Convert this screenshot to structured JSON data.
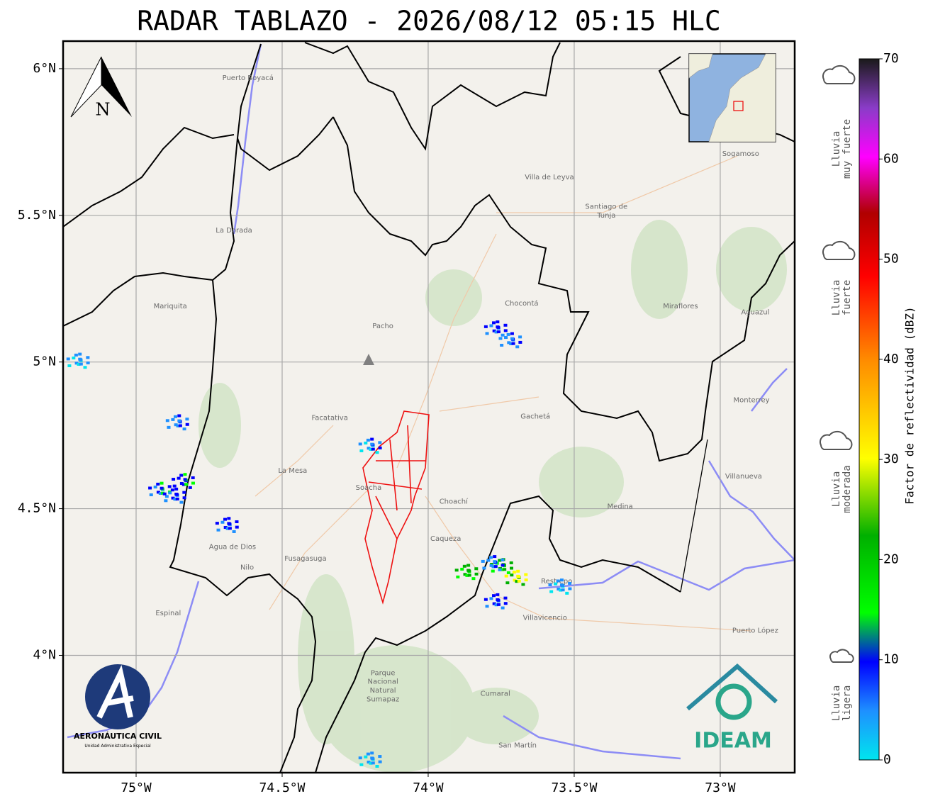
{
  "title": "RADAR TABLAZO - 2026/08/12 05:15 HLC",
  "map": {
    "xlim": [
      -75.25,
      -72.745
    ],
    "ylim": [
      3.6,
      6.094
    ],
    "grid": true,
    "xticks": [
      {
        "value": -75,
        "label": "75°W"
      },
      {
        "value": -74.5,
        "label": "74.5°W"
      },
      {
        "value": -74,
        "label": "74°W"
      },
      {
        "value": -73.5,
        "label": "73.5°W"
      },
      {
        "value": -73,
        "label": "73°W"
      }
    ],
    "yticks": [
      {
        "value": 4,
        "label": "4°N"
      },
      {
        "value": 4.5,
        "label": "4.5°N"
      },
      {
        "value": 5,
        "label": "5°N"
      },
      {
        "value": 5.5,
        "label": "5.5°N"
      },
      {
        "value": 6,
        "label": "6°N"
      }
    ],
    "north_label": "N",
    "places": [
      {
        "name": "Villavicencio",
        "lon": -73.6,
        "lat": 4.128
      },
      {
        "name": "Fusagasuga",
        "lon": -74.42,
        "lat": 4.33
      },
      {
        "name": "Soacha",
        "lon": -74.204,
        "lat": 4.572
      },
      {
        "name": "Facatativa",
        "lon": -74.337,
        "lat": 4.809
      },
      {
        "name": "Villa de Leyva",
        "lon": -73.585,
        "lat": 5.63
      },
      {
        "name": "Santiago de",
        "lon": -73.39,
        "lat": 5.53
      },
      {
        "name": "Tunja",
        "lon": -73.39,
        "lat": 5.5
      },
      {
        "name": "Sogamoso",
        "lon": -72.93,
        "lat": 5.71
      },
      {
        "name": "Pacho",
        "lon": -74.155,
        "lat": 5.123
      },
      {
        "name": "La Mesa",
        "lon": -74.464,
        "lat": 4.63
      },
      {
        "name": "Choachí",
        "lon": -73.913,
        "lat": 4.524
      },
      {
        "name": "Caqueza",
        "lon": -73.94,
        "lat": 4.398
      },
      {
        "name": "Chocontá",
        "lon": -73.68,
        "lat": 5.2
      },
      {
        "name": "Restrepo",
        "lon": -73.56,
        "lat": 4.253
      },
      {
        "name": "Medina",
        "lon": -73.343,
        "lat": 4.507
      },
      {
        "name": "Gachetá",
        "lon": -73.633,
        "lat": 4.814
      },
      {
        "name": "Miraflores",
        "lon": -73.136,
        "lat": 5.19
      },
      {
        "name": "Puerto Boyacá",
        "lon": -74.617,
        "lat": 5.968
      },
      {
        "name": "La Dorada",
        "lon": -74.665,
        "lat": 5.449
      },
      {
        "name": "Mariquita",
        "lon": -74.883,
        "lat": 5.19
      },
      {
        "name": "Espinal",
        "lon": -74.89,
        "lat": 4.144
      },
      {
        "name": "Nilo",
        "lon": -74.62,
        "lat": 4.3
      },
      {
        "name": "Agua de Dios",
        "lon": -74.67,
        "lat": 4.37
      },
      {
        "name": "Monterrey",
        "lon": -72.893,
        "lat": 4.87
      },
      {
        "name": "Aguazul",
        "lon": -72.88,
        "lat": 5.17
      },
      {
        "name": "Villanueva",
        "lon": -72.92,
        "lat": 4.61
      },
      {
        "name": "Puerto López",
        "lon": -72.88,
        "lat": 4.084
      },
      {
        "name": "Cumaral",
        "lon": -73.77,
        "lat": 3.87
      },
      {
        "name": "San Martín",
        "lon": -73.694,
        "lat": 3.693
      },
      {
        "name": "Parque",
        "lon": -74.155,
        "lat": 3.94
      },
      {
        "name": "Nacional",
        "lon": -74.155,
        "lat": 3.91
      },
      {
        "name": "Natural",
        "lon": -74.155,
        "lat": 3.88
      },
      {
        "name": "Sumapaz",
        "lon": -74.155,
        "lat": 3.85
      }
    ],
    "echoes": [
      {
        "lon": -74.92,
        "lat": 4.57,
        "dbz": 12
      },
      {
        "lon": -74.87,
        "lat": 4.55,
        "dbz": 10
      },
      {
        "lon": -74.84,
        "lat": 4.6,
        "dbz": 14
      },
      {
        "lon": -74.86,
        "lat": 4.8,
        "dbz": 9
      },
      {
        "lon": -74.69,
        "lat": 4.45,
        "dbz": 11
      },
      {
        "lon": -75.2,
        "lat": 5.01,
        "dbz": 6
      },
      {
        "lon": -73.77,
        "lat": 5.12,
        "dbz": 11
      },
      {
        "lon": -73.72,
        "lat": 5.08,
        "dbz": 9
      },
      {
        "lon": -73.75,
        "lat": 4.31,
        "dbz": 24
      },
      {
        "lon": -73.7,
        "lat": 4.27,
        "dbz": 30
      },
      {
        "lon": -73.77,
        "lat": 4.19,
        "dbz": 10
      },
      {
        "lon": -73.87,
        "lat": 4.29,
        "dbz": 22
      },
      {
        "lon": -73.78,
        "lat": 4.32,
        "dbz": 8
      },
      {
        "lon": -73.55,
        "lat": 4.24,
        "dbz": 6
      },
      {
        "lon": -74.2,
        "lat": 3.65,
        "dbz": 5
      },
      {
        "lon": -74.2,
        "lat": 4.72,
        "dbz": 7
      }
    ]
  },
  "colorbar": {
    "label": "Factor de reflectividad (dBZ)",
    "lim": [
      0,
      70
    ],
    "ticks": [
      0,
      10,
      20,
      30,
      40,
      50,
      60,
      70
    ]
  },
  "intensity_legend": [
    [
      "Lluvia",
      "muy fuerte"
    ],
    [
      "Lluvia",
      "fuerte"
    ],
    [
      "Lluvia",
      "moderada"
    ],
    [
      "Lluvia",
      "ligera"
    ]
  ],
  "logos": {
    "aerocivil": [
      "AERONÁUTICA CIVIL",
      "Unidad Administrativa Especial"
    ],
    "ideam": "IDEAM"
  }
}
